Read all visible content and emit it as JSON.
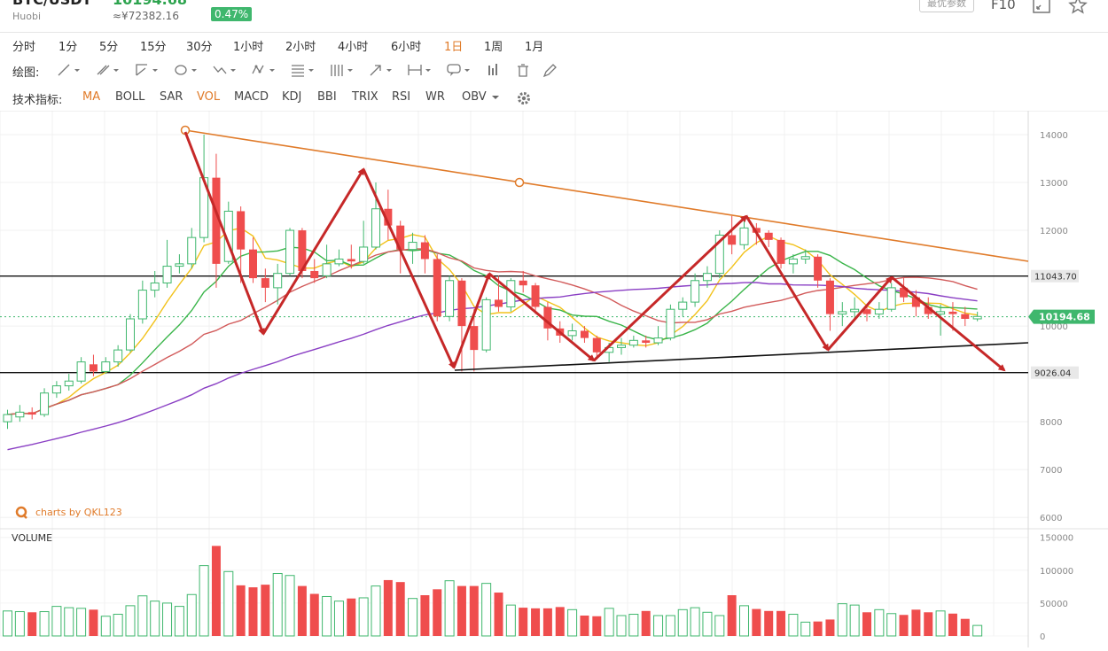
{
  "header": {
    "pair": "BTC/USDT",
    "price": "10194.68",
    "exchange": "Huobi",
    "cny_price": "≈¥72382.16",
    "change_pct": "0.47%",
    "params_label": "最优参数",
    "f10_label": "F10"
  },
  "timeframes": [
    {
      "label": "分时"
    },
    {
      "label": "1分"
    },
    {
      "label": "5分"
    },
    {
      "label": "15分"
    },
    {
      "label": "30分"
    },
    {
      "label": "1小时"
    },
    {
      "label": "2小时"
    },
    {
      "label": "4小时"
    },
    {
      "label": "6小时"
    },
    {
      "label": "1日",
      "active": true
    },
    {
      "label": "1周"
    },
    {
      "label": "1月"
    }
  ],
  "drawing": {
    "label": "绘图:"
  },
  "indicators": {
    "label": "技术指标:",
    "items": [
      {
        "label": "MA",
        "active": true
      },
      {
        "label": "BOLL"
      },
      {
        "label": "SAR"
      },
      {
        "label": "VOL",
        "active": true
      },
      {
        "label": "MACD"
      },
      {
        "label": "KDJ"
      },
      {
        "label": "BBI"
      },
      {
        "label": "TRIX"
      },
      {
        "label": "RSI"
      },
      {
        "label": "WR"
      },
      {
        "label": "OBV"
      }
    ]
  },
  "chart_data": {
    "type": "candlestick",
    "watermark": "charts by QKL123",
    "volume_label": "VOLUME",
    "price_axis": {
      "ticks": [
        6000,
        7000,
        8000,
        10000,
        12000,
        13000,
        14000
      ],
      "range": [
        5800,
        14500
      ]
    },
    "volume_axis": {
      "ticks": [
        0,
        50000,
        100000,
        150000
      ],
      "labels": [
        "0",
        "50000",
        "100000",
        "150000"
      ],
      "range": [
        0,
        155000
      ]
    },
    "hlines": [
      {
        "price": 11043.7,
        "label": "11043.70"
      },
      {
        "price": 9026.04,
        "label": "9026.04"
      }
    ],
    "last_price": {
      "price": 10194.68,
      "label": "10194.68",
      "color": "#3fb76d"
    },
    "candles": [
      [
        8000,
        8150,
        8250,
        7850
      ],
      [
        8100,
        8200,
        8350,
        8000
      ],
      [
        8200,
        8150,
        8300,
        8050
      ],
      [
        8150,
        8600,
        8700,
        8100
      ],
      [
        8600,
        8750,
        8850,
        8500
      ],
      [
        8750,
        8850,
        9000,
        8650
      ],
      [
        8850,
        9250,
        9350,
        8800
      ],
      [
        9200,
        9050,
        9400,
        8950
      ],
      [
        9050,
        9250,
        9350,
        9000
      ],
      [
        9250,
        9500,
        9600,
        9150
      ],
      [
        9500,
        10150,
        10250,
        9450
      ],
      [
        10150,
        10750,
        10950,
        10050
      ],
      [
        10750,
        10900,
        11150,
        10600
      ],
      [
        10900,
        11250,
        11800,
        10800
      ],
      [
        11250,
        11300,
        11500,
        11100
      ],
      [
        11300,
        11850,
        12050,
        11200
      ],
      [
        11850,
        13100,
        14000,
        11750
      ],
      [
        13100,
        11300,
        13600,
        10800
      ],
      [
        11350,
        12400,
        12600,
        11300
      ],
      [
        12400,
        11600,
        12500,
        10900
      ],
      [
        11600,
        11000,
        11850,
        10900
      ],
      [
        11000,
        10800,
        11200,
        10500
      ],
      [
        10800,
        11100,
        11300,
        10450
      ],
      [
        11100,
        12000,
        12050,
        11050
      ],
      [
        12000,
        11150,
        12050,
        11000
      ],
      [
        11150,
        11000,
        11400,
        10900
      ],
      [
        11050,
        11300,
        11700,
        11000
      ],
      [
        11300,
        11400,
        11600,
        11250
      ],
      [
        11400,
        11350,
        11700,
        11200
      ],
      [
        11350,
        11650,
        12200,
        11300
      ],
      [
        11650,
        12450,
        13000,
        11600
      ],
      [
        12450,
        12100,
        12850,
        11800
      ],
      [
        12100,
        11600,
        12200,
        11100
      ],
      [
        11600,
        11750,
        11950,
        11300
      ],
      [
        11750,
        11400,
        11900,
        11100
      ],
      [
        11400,
        10200,
        11500,
        10100
      ],
      [
        10200,
        10950,
        11050,
        10100
      ],
      [
        10950,
        10000,
        11000,
        9050
      ],
      [
        10000,
        9500,
        10350,
        9050
      ],
      [
        9500,
        10550,
        10600,
        9450
      ],
      [
        10550,
        10400,
        11050,
        10300
      ],
      [
        10400,
        10950,
        11000,
        10300
      ],
      [
        10950,
        10850,
        11150,
        10700
      ],
      [
        10850,
        10400,
        10900,
        10250
      ],
      [
        10400,
        9950,
        10500,
        9700
      ],
      [
        9950,
        9800,
        10100,
        9650
      ],
      [
        9800,
        9900,
        10050,
        9700
      ],
      [
        9900,
        9750,
        10000,
        9650
      ],
      [
        9750,
        9450,
        9800,
        9300
      ],
      [
        9450,
        9550,
        9650,
        9250
      ],
      [
        9550,
        9600,
        9750,
        9400
      ],
      [
        9600,
        9700,
        9800,
        9550
      ],
      [
        9700,
        9650,
        9800,
        9550
      ],
      [
        9650,
        9750,
        10000,
        9600
      ],
      [
        9750,
        10350,
        10450,
        9700
      ],
      [
        10350,
        10500,
        10600,
        10200
      ],
      [
        10500,
        10950,
        11100,
        10400
      ],
      [
        10950,
        11100,
        11250,
        10800
      ],
      [
        11100,
        11900,
        12000,
        11000
      ],
      [
        11900,
        11700,
        12300,
        11500
      ],
      [
        11700,
        12050,
        12200,
        11600
      ],
      [
        12050,
        11950,
        12150,
        11700
      ],
      [
        11950,
        11800,
        12000,
        11650
      ],
      [
        11800,
        11300,
        11850,
        11200
      ],
      [
        11300,
        11400,
        11500,
        11100
      ],
      [
        11400,
        11450,
        11600,
        11300
      ],
      [
        11450,
        10950,
        11500,
        10800
      ],
      [
        10950,
        10250,
        11000,
        9900
      ],
      [
        10250,
        10300,
        10500,
        10000
      ],
      [
        10300,
        10350,
        10600,
        10150
      ],
      [
        10350,
        10250,
        10400,
        10100
      ],
      [
        10250,
        10350,
        10500,
        10150
      ],
      [
        10350,
        10800,
        10900,
        10300
      ],
      [
        10800,
        10600,
        11000,
        10500
      ],
      [
        10600,
        10400,
        10750,
        10200
      ],
      [
        10400,
        10250,
        10600,
        10150
      ],
      [
        10250,
        10300,
        10450,
        9800
      ],
      [
        10300,
        10250,
        10500,
        9900
      ],
      [
        10250,
        10150,
        10400,
        10000
      ],
      [
        10150,
        10200,
        10300,
        10100
      ]
    ],
    "volumes": [
      38000,
      37000,
      36000,
      37000,
      45000,
      43000,
      42000,
      40000,
      30000,
      33000,
      46000,
      61000,
      53000,
      50000,
      45000,
      63000,
      107000,
      137000,
      98000,
      77000,
      74000,
      78000,
      95000,
      92000,
      76000,
      64000,
      60000,
      53000,
      57000,
      58000,
      76000,
      85000,
      82000,
      57000,
      62000,
      71000,
      84000,
      76000,
      76000,
      80000,
      66000,
      47000,
      43000,
      42000,
      42000,
      44000,
      40000,
      31000,
      30000,
      42000,
      31000,
      33000,
      38000,
      31000,
      31000,
      40000,
      43000,
      36000,
      31000,
      62000,
      46000,
      41000,
      38000,
      38000,
      33000,
      21000,
      22000,
      25000,
      49000,
      47000,
      36000,
      40000,
      34000,
      32000,
      40000,
      36000,
      38000,
      34000,
      26000,
      16000
    ]
  }
}
